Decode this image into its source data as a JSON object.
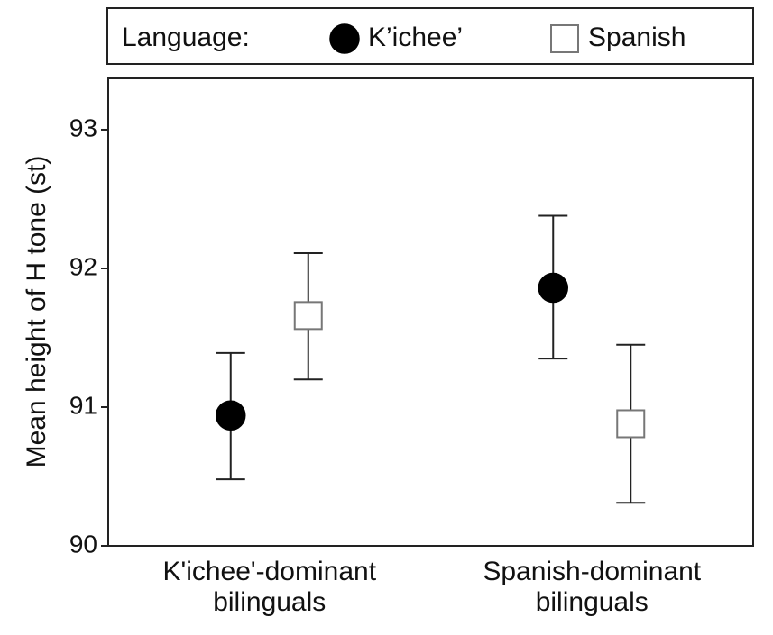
{
  "chart_data": {
    "type": "errorbar",
    "y_label": "Mean height of H tone (st)",
    "legend_title": "Language:",
    "legend_position": "top",
    "categories": [
      "K'ichee'-dominant bilinguals",
      "Spanish-dominant bilinguals"
    ],
    "series": [
      {
        "name": "K’ichee’",
        "marker": "circle",
        "color": "#000000",
        "values": [
          90.94,
          91.86
        ],
        "lower": [
          90.48,
          91.35
        ],
        "upper": [
          91.39,
          92.38
        ]
      },
      {
        "name": "Spanish",
        "marker": "square",
        "color": "#ffffff",
        "values": [
          91.66,
          90.88
        ],
        "lower": [
          91.2,
          90.31
        ],
        "upper": [
          92.11,
          91.45
        ]
      }
    ],
    "ylim": [
      90,
      93.37
    ],
    "yticks": [
      90,
      91,
      92,
      93
    ],
    "grid": false
  }
}
